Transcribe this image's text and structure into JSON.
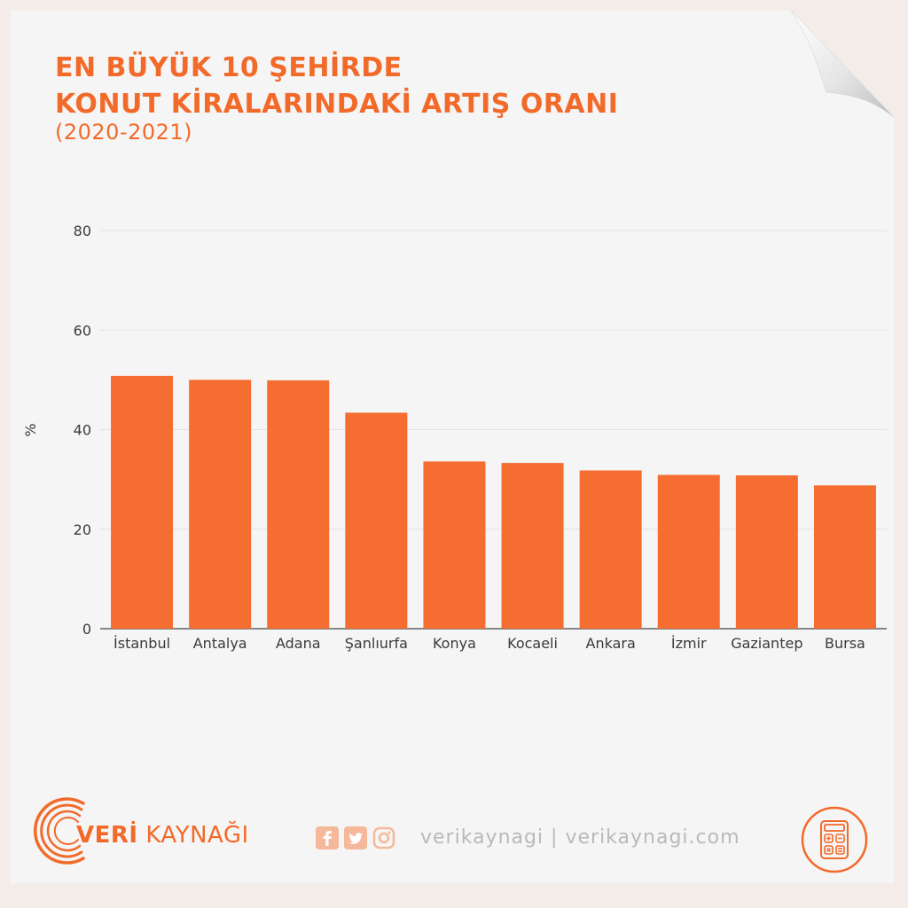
{
  "title": {
    "line1": "EN BÜYÜK 10 ŞEHİRDE",
    "line2": "KONUT KİRALARINDAKİ ARTIŞ ORANI",
    "subtitle": "(2020-2021)"
  },
  "colors": {
    "accent": "#f26a2a",
    "bar": "#f56d31",
    "background": "#f5f5f5",
    "grid": "#e3e3e3"
  },
  "chart_data": {
    "type": "bar",
    "categories": [
      "İstanbul",
      "Antalya",
      "Adana",
      "Şanlıurfa",
      "Konya",
      "Kocaeli",
      "Ankara",
      "İzmir",
      "Gaziantep",
      "Bursa"
    ],
    "values": [
      50.8,
      50.0,
      49.9,
      43.4,
      33.6,
      33.3,
      31.8,
      30.9,
      30.8,
      28.8
    ],
    "title": "",
    "xlabel": "",
    "ylabel": "%",
    "ylim": [
      0,
      80
    ],
    "yticks": [
      0,
      20,
      40,
      60,
      80
    ],
    "grid": true
  },
  "footer": {
    "brand_bold": "VERİ",
    "brand_rest": " KAYNAĞI",
    "social_icons": [
      "facebook-icon",
      "twitter-icon",
      "instagram-icon"
    ],
    "site_text": "verikaynagi | verikaynagi.com",
    "calculator_icon": "calculator-icon"
  }
}
